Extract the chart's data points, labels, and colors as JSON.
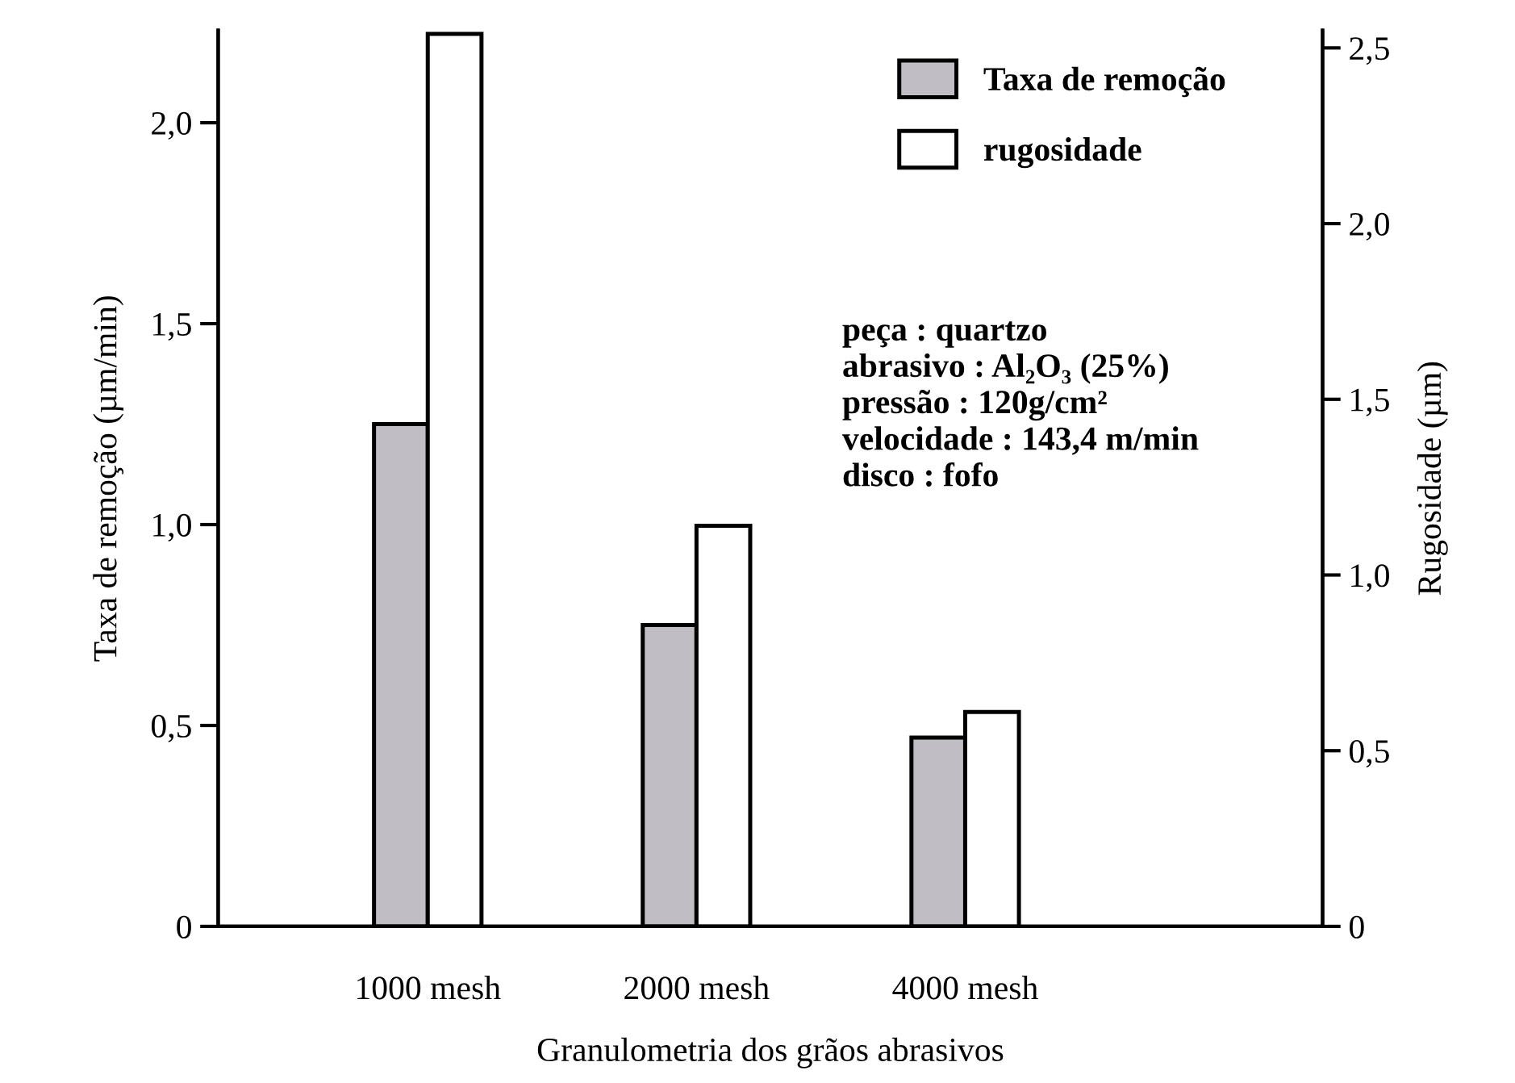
{
  "chart_data": {
    "type": "bar",
    "xlabel": "Granulometria dos grãos abrasivos",
    "ylabel": "Taxa de remoção (µm/min)",
    "y2label": "Rugosidade (µm)",
    "categories": [
      "1000 mesh",
      "2000 mesh",
      "4000 mesh"
    ],
    "series": [
      {
        "name": "Taxa de remoção",
        "color": "#c0bec4",
        "values": [
          1.25,
          0.75,
          0.47
        ]
      },
      {
        "name": "rugosidade",
        "color": "#ffffff",
        "values": [
          2.54,
          1.14,
          0.61
        ],
        "axis": "y2"
      }
    ],
    "ylim": [
      0,
      2.23
    ],
    "yticks": [
      0,
      {
        "value": 0.5,
        "label": "0,5"
      },
      {
        "value": 1.0,
        "label": "1,0"
      },
      {
        "value": 1.5,
        "label": "1,5"
      },
      {
        "value": 2.0,
        "label": "2,0"
      }
    ],
    "y2lim": [
      0,
      2.55
    ],
    "y2ticks": [
      0,
      {
        "value": 0.5,
        "label": "0,5"
      },
      {
        "value": 1.0,
        "label": "1,0"
      },
      {
        "value": 1.5,
        "label": "1,5"
      },
      {
        "value": 2.0,
        "label": "2,0"
      },
      {
        "value": 2.5,
        "label": "2,5"
      }
    ],
    "legend": "top right",
    "annotations": [
      "peça : quartzo\nabrasivo : Al₂O₃ (25%)\npressão : 120g/cm²\nvelocidade : 143,4 m/min\ndisco : fofo"
    ]
  }
}
